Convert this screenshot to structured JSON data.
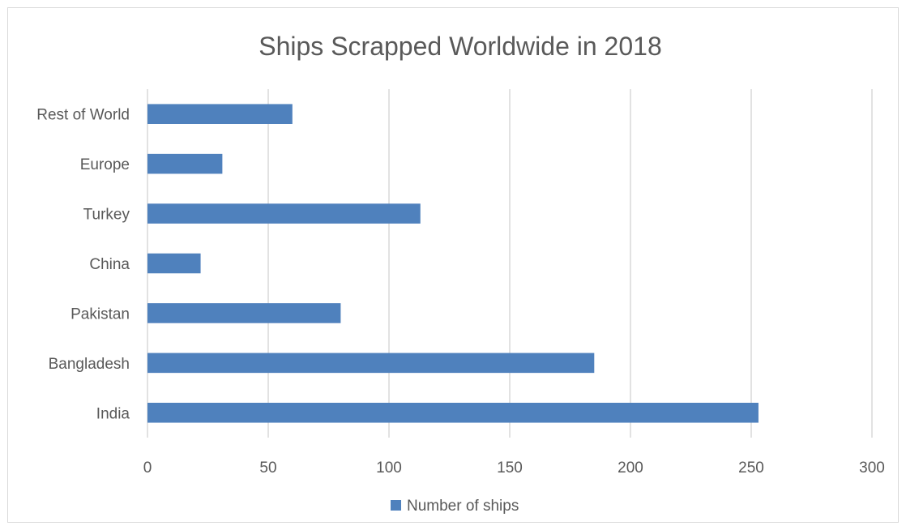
{
  "chart_data": {
    "type": "bar",
    "orientation": "horizontal",
    "title": "Ships Scrapped Worldwide in 2018",
    "categories": [
      "Rest of World",
      "Europe",
      "Turkey",
      "China",
      "Pakistan",
      "Bangladesh",
      "India"
    ],
    "series": [
      {
        "name": "Number of ships",
        "values": [
          60,
          31,
          113,
          22,
          80,
          185,
          253
        ],
        "color": "#4f81bd"
      }
    ],
    "xlim": [
      0,
      300
    ],
    "xticks": [
      0,
      50,
      100,
      150,
      200,
      250,
      300
    ],
    "grid": true,
    "legend_position": "bottom",
    "colors": {
      "bar": "#4f81bd",
      "grid": "#d9d9d9",
      "text": "#595959",
      "border": "#d9d9d9"
    }
  }
}
